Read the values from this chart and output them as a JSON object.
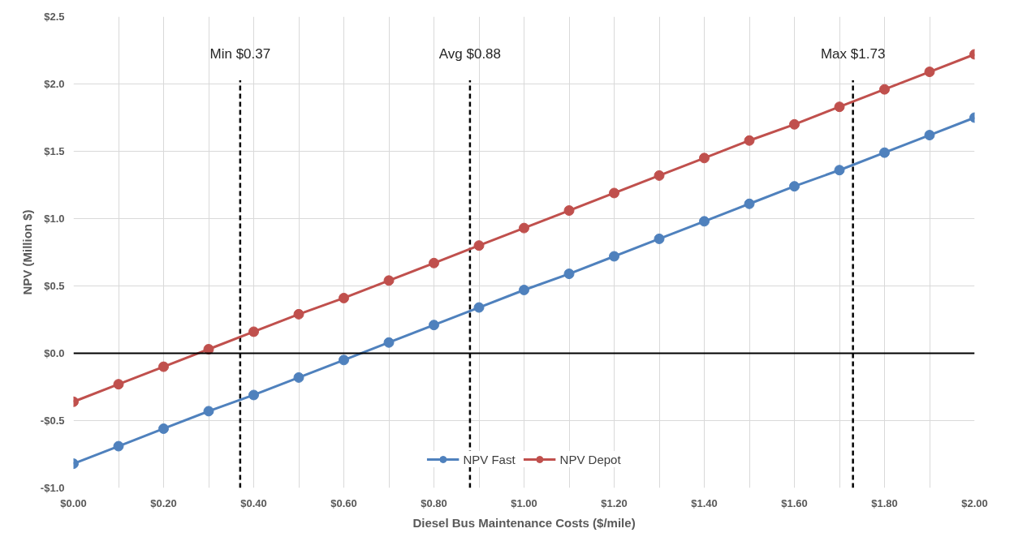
{
  "chart_data": {
    "type": "line",
    "xlabel": "Diesel Bus Maintenance Costs ($/mile)",
    "ylabel": "NPV (Million $)",
    "x": [
      0,
      0.1,
      0.2,
      0.3,
      0.4,
      0.5,
      0.6,
      0.7,
      0.8,
      0.9,
      1.0,
      1.1,
      1.2,
      1.3,
      1.4,
      1.5,
      1.6,
      1.7,
      1.8,
      1.9,
      2.0
    ],
    "series": [
      {
        "name": "NPV Fast",
        "color": "#4f81bd",
        "values": [
          -0.82,
          -0.69,
          -0.56,
          -0.43,
          -0.31,
          -0.18,
          -0.05,
          0.08,
          0.21,
          0.34,
          0.47,
          0.59,
          0.72,
          0.85,
          0.98,
          1.11,
          1.24,
          1.36,
          1.49,
          1.62,
          1.75
        ]
      },
      {
        "name": "NPV Depot",
        "color": "#c0504d",
        "values": [
          -0.36,
          -0.23,
          -0.1,
          0.03,
          0.16,
          0.29,
          0.41,
          0.54,
          0.67,
          0.8,
          0.93,
          1.06,
          1.19,
          1.32,
          1.45,
          1.58,
          1.7,
          1.83,
          1.96,
          2.09,
          2.22
        ]
      }
    ],
    "xlim": [
      0,
      2.0
    ],
    "xticks": [
      {
        "value": 0,
        "label": "$0.00"
      },
      {
        "value": 0.1,
        "label": null
      },
      {
        "value": 0.2,
        "label": "$0.20"
      },
      {
        "value": 0.3,
        "label": null
      },
      {
        "value": 0.4,
        "label": "$0.40"
      },
      {
        "value": 0.5,
        "label": null
      },
      {
        "value": 0.6,
        "label": "$0.60"
      },
      {
        "value": 0.7,
        "label": null
      },
      {
        "value": 0.8,
        "label": "$0.80"
      },
      {
        "value": 0.9,
        "label": null
      },
      {
        "value": 1.0,
        "label": "$1.00"
      },
      {
        "value": 1.1,
        "label": null
      },
      {
        "value": 1.2,
        "label": "$1.20"
      },
      {
        "value": 1.3,
        "label": null
      },
      {
        "value": 1.4,
        "label": "$1.40"
      },
      {
        "value": 1.5,
        "label": null
      },
      {
        "value": 1.6,
        "label": "$1.60"
      },
      {
        "value": 1.7,
        "label": null
      },
      {
        "value": 1.8,
        "label": "$1.80"
      },
      {
        "value": 1.9,
        "label": null
      },
      {
        "value": 2.0,
        "label": "$2.00"
      }
    ],
    "ylim": [
      -1.0,
      2.5
    ],
    "yticks": [
      {
        "value": -1.0,
        "label": "-$1.0"
      },
      {
        "value": -0.5,
        "label": "-$0.5"
      },
      {
        "value": 0,
        "label": "$0.0"
      },
      {
        "value": 0.5,
        "label": "$0.5"
      },
      {
        "value": 1.0,
        "label": "$1.0"
      },
      {
        "value": 1.5,
        "label": "$1.5"
      },
      {
        "value": 2.0,
        "label": "$2.0"
      },
      {
        "value": 2.5,
        "label": "$2.5"
      }
    ],
    "ref_lines": [
      {
        "axis": "y",
        "value": 0,
        "label": null,
        "color": "#000000",
        "line_style": "solid"
      },
      {
        "axis": "x",
        "value": 0.37,
        "label": "Min $0.37",
        "color": "#000000",
        "line_style": "dashed"
      },
      {
        "axis": "x",
        "value": 0.88,
        "label": "Avg $0.88",
        "color": "#000000",
        "line_style": "dashed"
      },
      {
        "axis": "x",
        "value": 1.73,
        "label": "Max $1.73",
        "color": "#000000",
        "line_style": "dashed"
      }
    ],
    "grid": true,
    "legend": "bottom",
    "marker": "circle",
    "line_style": "solid"
  }
}
